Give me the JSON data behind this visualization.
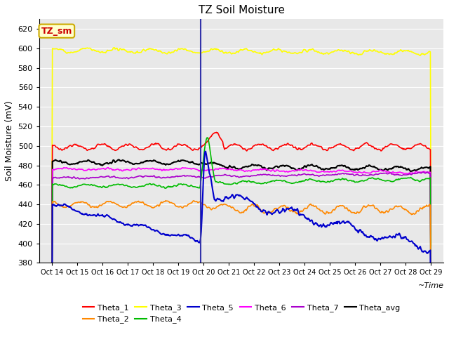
{
  "title": "TZ Soil Moisture",
  "ylabel": "Soil Moisture (mV)",
  "xlabel": "~Time",
  "xlim": [
    13.5,
    29.5
  ],
  "ylim": [
    380,
    630
  ],
  "yticks": [
    380,
    400,
    420,
    440,
    460,
    480,
    500,
    520,
    540,
    560,
    580,
    600,
    620
  ],
  "vline_day": 19.9,
  "bg_color": "#e8e8e8",
  "legend_box_facecolor": "#ffffcc",
  "legend_box_edgecolor": "#ccaa00",
  "legend_box_text_color": "#cc0000",
  "colors": {
    "Theta_1": "#ff0000",
    "Theta_2": "#ff8800",
    "Theta_3": "#ffff00",
    "Theta_4": "#00bb00",
    "Theta_5": "#0000cc",
    "Theta_6": "#ff00ff",
    "Theta_7": "#aa00cc",
    "Theta_avg": "#000000"
  }
}
